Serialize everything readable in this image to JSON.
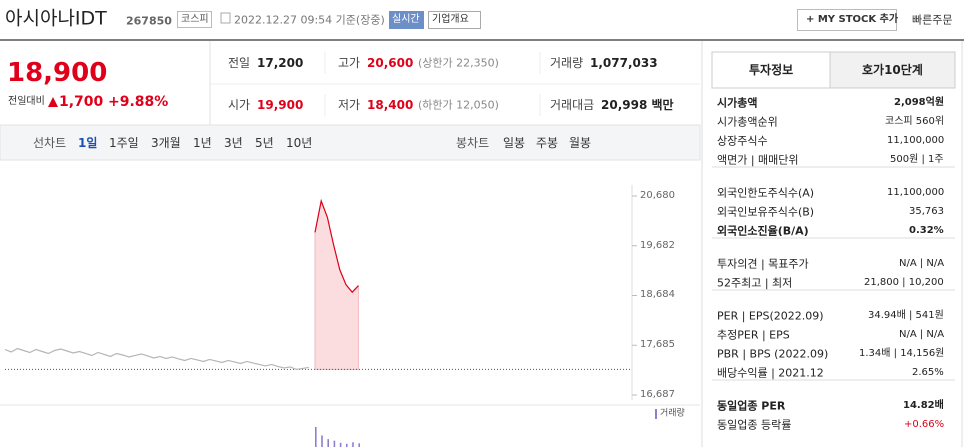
{
  "header": {
    "name": "아시아나IDT",
    "code": "267850",
    "market": "코스피",
    "timestamp": "2022.12.27 09:54 기준(장중)",
    "realtime": "실시간",
    "company_info": "기업개요",
    "add_button": "+ MY STOCK 추가",
    "quick_order": "빠른주문"
  },
  "price": {
    "current": "18,900",
    "change_label": "전일대비",
    "change": "1,700",
    "change_rate": "+9.88%"
  },
  "summary": {
    "rows": [
      [
        {
          "label": "전일",
          "value": "17,200"
        },
        {
          "label": "고가",
          "value": "20,600",
          "color": "#e0001a",
          "note": "(상한가 22,350)"
        },
        {
          "label": "거래량",
          "value": "1,077,033"
        }
      ],
      [
        {
          "label": "시가",
          "value": "19,900",
          "color": "#e0001a"
        },
        {
          "label": "저가",
          "value": "18,400",
          "color": "#e0001a",
          "note": "(하한가 12,050)"
        },
        {
          "label": "거래대금",
          "value": "20,998 백만"
        }
      ]
    ]
  },
  "tabs": {
    "line_label": "선차트",
    "line": [
      "1일",
      "1주일",
      "3개월",
      "1년",
      "3년",
      "5년",
      "10년"
    ],
    "candle_label": "봉차트",
    "candle": [
      "일봉",
      "주봉",
      "월봉"
    ]
  },
  "chart_data": {
    "type": "line",
    "ylim": [
      16687,
      20680
    ],
    "yticks": [
      {
        "value": 20680,
        "label": "20,680"
      },
      {
        "value": 19682,
        "label": "19,682"
      },
      {
        "value": 18684,
        "label": "18,684"
      },
      {
        "value": 17685,
        "label": "17,685"
      },
      {
        "value": 16687,
        "label": "16,687"
      }
    ],
    "prev_close": 17200,
    "series": [
      {
        "color": "#b5b5b5",
        "values": [
          17600,
          17550,
          17620,
          17580,
          17540,
          17600,
          17560,
          17520,
          17580,
          17610,
          17570,
          17530,
          17560,
          17520,
          17480,
          17540,
          17500,
          17460,
          17520,
          17490,
          17450,
          17480,
          17510,
          17470,
          17430,
          17460,
          17420,
          17450,
          17410,
          17380,
          17420,
          17390,
          17360,
          17400,
          17370,
          17340,
          17380,
          17350,
          17320,
          17360,
          17330,
          17300,
          17270,
          17300,
          17260,
          17230,
          17250,
          17200,
          17220,
          17240,
          null,
          null,
          null,
          null,
          null,
          null,
          null,
          null
        ]
      },
      {
        "color": "#e0001a",
        "values": [
          null,
          null,
          null,
          null,
          null,
          null,
          null,
          null,
          null,
          null,
          null,
          null,
          null,
          null,
          null,
          null,
          null,
          null,
          null,
          null,
          null,
          null,
          null,
          null,
          null,
          null,
          null,
          null,
          null,
          null,
          null,
          null,
          null,
          null,
          null,
          null,
          null,
          null,
          null,
          null,
          null,
          null,
          null,
          null,
          null,
          null,
          null,
          null,
          null,
          null,
          19950,
          20580,
          20250,
          19700,
          19200,
          18900,
          18750,
          18880
        ]
      }
    ],
    "volume": {
      "name": "거래량",
      "color": "#8b80d0",
      "values": [
        null,
        null,
        null,
        null,
        null,
        null,
        null,
        null,
        null,
        null,
        null,
        null,
        null,
        null,
        null,
        null,
        null,
        null,
        null,
        null,
        null,
        null,
        null,
        null,
        null,
        null,
        null,
        null,
        null,
        null,
        null,
        null,
        null,
        null,
        null,
        null,
        null,
        null,
        null,
        null,
        null,
        null,
        null,
        null,
        null,
        null,
        null,
        null,
        null,
        null,
        38,
        22,
        15,
        12,
        8,
        6,
        9,
        7
      ]
    }
  },
  "info": {
    "tabs": [
      "투자정보",
      "호가10단계"
    ],
    "groups": [
      {
        "rows": [
          {
            "label": "시가총액",
            "value": "2,098억원",
            "bold": true
          },
          {
            "label": "시가총액순위",
            "value": "코스피 560위"
          },
          {
            "label": "상장주식수",
            "value": "11,100,000"
          },
          {
            "label": "액면가 | 매매단위",
            "value": "500원 | 1주"
          }
        ]
      },
      {
        "rows": [
          {
            "label": "외국인한도주식수(A)",
            "value": "11,100,000"
          },
          {
            "label": "외국인보유주식수(B)",
            "value": "35,763"
          },
          {
            "label": "외국인소진율(B/A)",
            "value": "0.32%",
            "bold": true
          }
        ]
      },
      {
        "rows": [
          {
            "label": "투자의견 | 목표주가",
            "value": "N/A | N/A"
          },
          {
            "label": "52주최고 | 최저",
            "value": "21,800 | 10,200"
          }
        ]
      },
      {
        "rows": [
          {
            "label": "PER | EPS(2022.09)",
            "value": "34.94배 | 541원"
          },
          {
            "label": "추정PER | EPS",
            "value": "N/A | N/A"
          },
          {
            "label": "PBR | BPS (2022.09)",
            "value": "1.34배 | 14,156원"
          },
          {
            "label": "배당수익률 | 2021.12",
            "value": "2.65%"
          }
        ]
      },
      {
        "rows": [
          {
            "label": "동일업종 PER",
            "value": "14.82배",
            "bold": true
          },
          {
            "label": "동일업종 등락률",
            "value": "+0.66%",
            "color": "#e0001a"
          }
        ]
      }
    ]
  }
}
